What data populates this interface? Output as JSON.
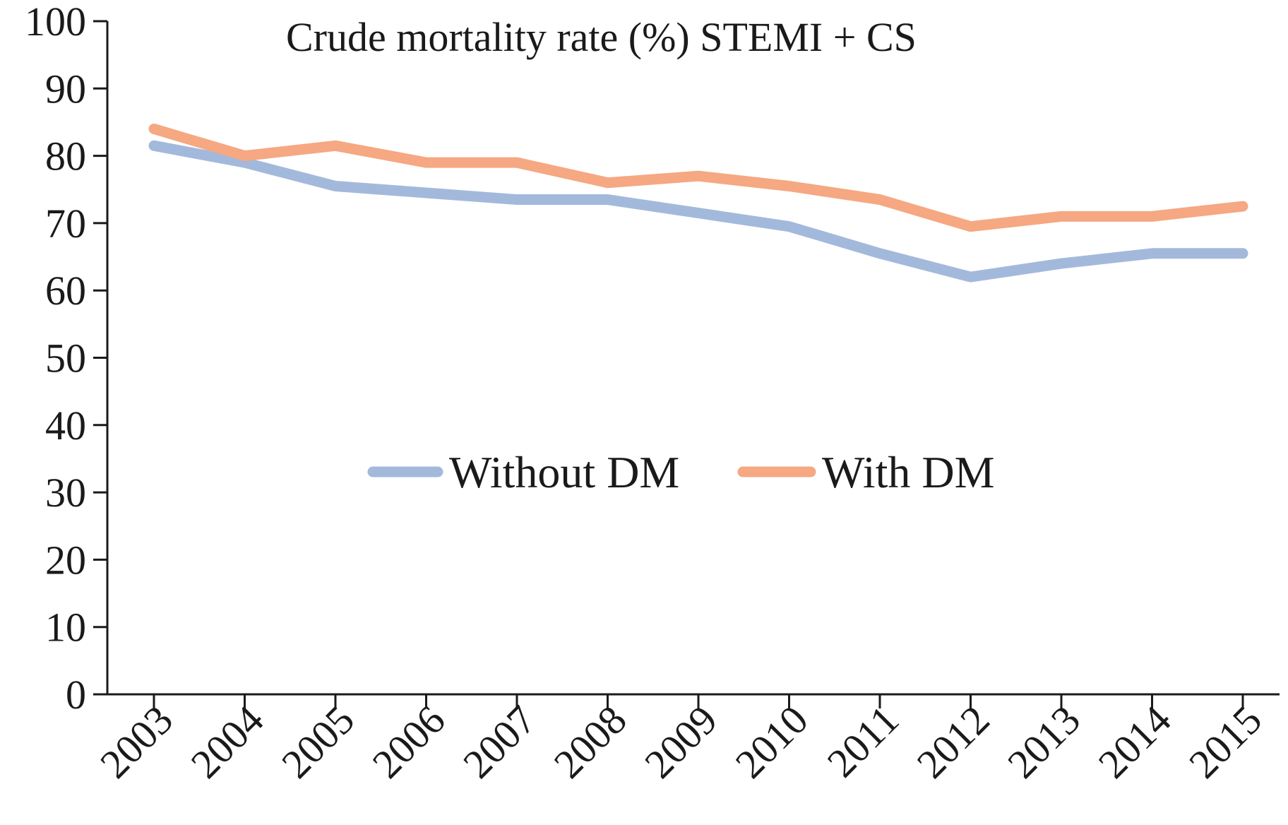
{
  "chart_data": {
    "type": "line",
    "title": "Crude mortality rate (%) STEMI + CS",
    "xlabel": "",
    "ylabel": "",
    "ylim": [
      0,
      100
    ],
    "yticks": [
      0,
      10,
      20,
      30,
      40,
      50,
      60,
      70,
      80,
      90,
      100
    ],
    "categories": [
      "2003",
      "2004",
      "2005",
      "2006",
      "2007",
      "2008",
      "2009",
      "2010",
      "2011",
      "2012",
      "2013",
      "2014",
      "2015"
    ],
    "series": [
      {
        "name": "Without DM",
        "color": "#a3b9dc",
        "values": [
          81.5,
          79,
          75.5,
          74.5,
          73.5,
          73.5,
          71.5,
          69.5,
          65.5,
          62,
          64,
          65.5,
          65.5
        ]
      },
      {
        "name": "With DM",
        "color": "#f5a882",
        "values": [
          84,
          80,
          81.5,
          79,
          79,
          76,
          77,
          75.5,
          73.5,
          69.5,
          71,
          71,
          72.5
        ]
      }
    ],
    "legend_position": "center",
    "grid": false
  }
}
